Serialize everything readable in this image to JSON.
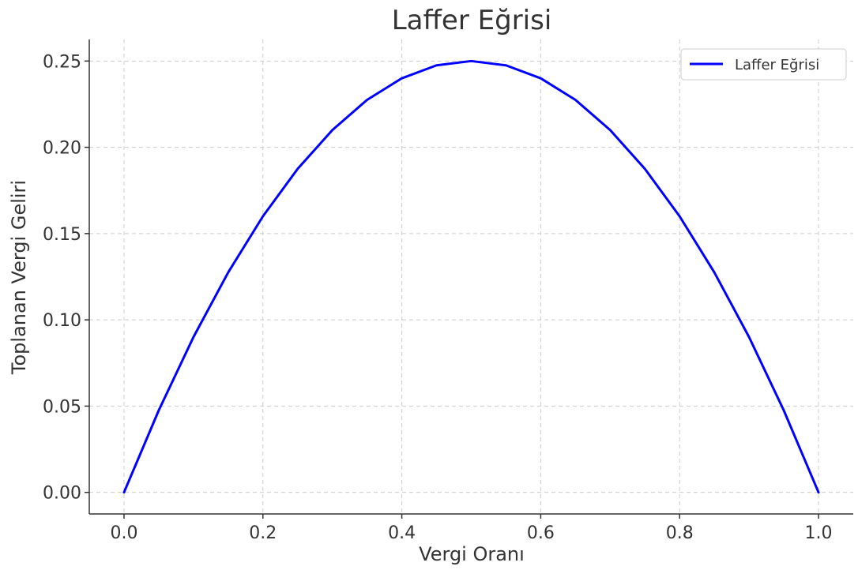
{
  "chart_data": {
    "type": "line",
    "title": "Laffer Eğrisi",
    "xlabel": "Vergi Oranı",
    "ylabel": "Toplanan Vergi Geliri",
    "xlim": [
      -0.05,
      1.05
    ],
    "ylim": [
      -0.0125,
      0.2625
    ],
    "x_ticks": [
      "0.0",
      "0.2",
      "0.4",
      "0.6",
      "0.8",
      "1.0"
    ],
    "y_ticks": [
      "0.00",
      "0.05",
      "0.10",
      "0.15",
      "0.20",
      "0.25"
    ],
    "grid": true,
    "legend_position": "top-right",
    "series": [
      {
        "name": "Laffer Eğrisi",
        "color": "#0000ff",
        "x": [
          0.0,
          0.05,
          0.1,
          0.15,
          0.2,
          0.25,
          0.3,
          0.35,
          0.4,
          0.45,
          0.5,
          0.55,
          0.6,
          0.65,
          0.7,
          0.75,
          0.8,
          0.85,
          0.9,
          0.95,
          1.0
        ],
        "y": [
          0.0,
          0.0475,
          0.09,
          0.1275,
          0.16,
          0.1875,
          0.21,
          0.2275,
          0.24,
          0.2475,
          0.25,
          0.2475,
          0.24,
          0.2275,
          0.21,
          0.1875,
          0.16,
          0.1275,
          0.09,
          0.0475,
          0.0
        ]
      }
    ]
  }
}
